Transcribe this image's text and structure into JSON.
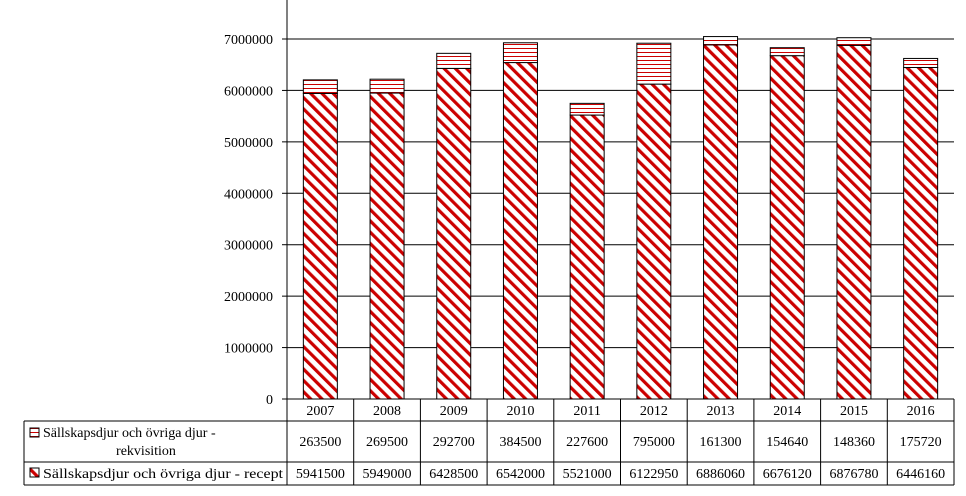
{
  "chart_data": {
    "type": "bar",
    "stacked": true,
    "categories": [
      "2007",
      "2008",
      "2009",
      "2010",
      "2011",
      "2012",
      "2013",
      "2014",
      "2015",
      "2016"
    ],
    "series": [
      {
        "name": "Sällskapsdjur och övriga djur - rekvisition",
        "values": [
          263500,
          269500,
          292700,
          384500,
          227600,
          795000,
          161300,
          154640,
          148360,
          175720
        ],
        "value_labels": [
          "263500",
          "269500",
          "292700",
          "384500",
          "227600",
          "795000",
          "161300",
          "154640",
          "148360",
          "175720"
        ],
        "pattern": "horizontal-lines",
        "color": "#cc0000"
      },
      {
        "name": "Sällskapsdjur och övriga djur - recept",
        "values": [
          5941500,
          5949000,
          6428500,
          6542000,
          5521000,
          6122950,
          6886060,
          6676120,
          6876780,
          6446160
        ],
        "value_labels": [
          "5941500",
          "5949000",
          "6428500",
          "6542000",
          "5521000",
          "6122950",
          "6886060",
          "6676120",
          "6876780",
          "6446160"
        ],
        "pattern": "diagonal-stripes",
        "color": "#cc0000"
      }
    ],
    "ylim": [
      0,
      7000000
    ],
    "ytick_labels": [
      "0",
      "1000000",
      "2000000",
      "3000000",
      "4000000",
      "5000000",
      "6000000",
      "7000000"
    ],
    "grid": true,
    "legend": "data-table-below",
    "title": "",
    "xlabel": "",
    "ylabel": ""
  }
}
